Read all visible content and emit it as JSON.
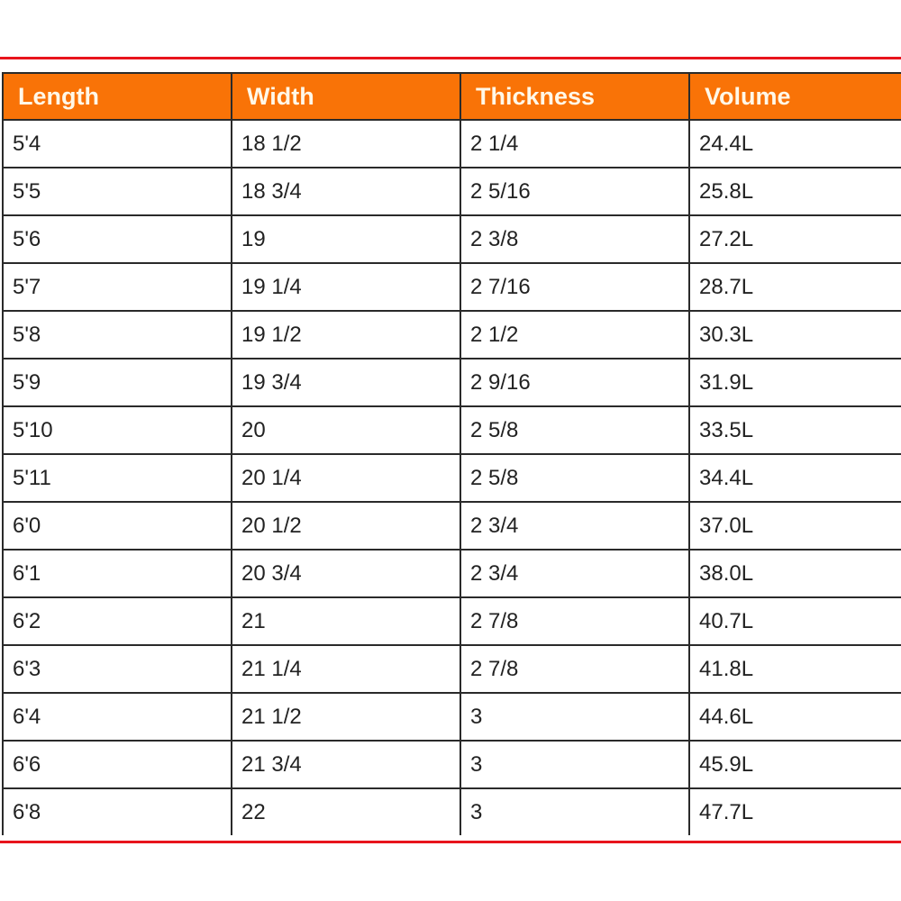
{
  "table": {
    "headers": [
      "Length",
      "Width",
      "Thickness",
      "Volume"
    ],
    "rows": [
      [
        "5'4",
        "18 1/2",
        "2 1/4",
        "24.4L"
      ],
      [
        "5'5",
        "18 3/4",
        "2 5/16",
        "25.8L"
      ],
      [
        "5'6",
        "19",
        "2 3/8",
        "27.2L"
      ],
      [
        "5'7",
        "19 1/4",
        "2 7/16",
        "28.7L"
      ],
      [
        "5'8",
        "19 1/2",
        "2 1/2",
        "30.3L"
      ],
      [
        "5'9",
        "19 3/4",
        "2 9/16",
        "31.9L"
      ],
      [
        "5'10",
        "20",
        "2 5/8",
        "33.5L"
      ],
      [
        "5'11",
        "20 1/4",
        "2 5/8",
        "34.4L"
      ],
      [
        "6'0",
        "20 1/2",
        "2 3/4",
        "37.0L"
      ],
      [
        "6'1",
        "20 3/4",
        "2 3/4",
        "38.0L"
      ],
      [
        "6'2",
        "21",
        "2 7/8",
        "40.7L"
      ],
      [
        "6'3",
        "21 1/4",
        "2 7/8",
        "41.8L"
      ],
      [
        "6'4",
        "21 1/2",
        "3",
        "44.6L"
      ],
      [
        "6'6",
        "21 3/4",
        "3",
        "45.9L"
      ],
      [
        "6'8",
        "22",
        "3",
        "47.7L"
      ]
    ]
  },
  "colors": {
    "header_bg": "#f97307",
    "rule": "#e8141c"
  }
}
